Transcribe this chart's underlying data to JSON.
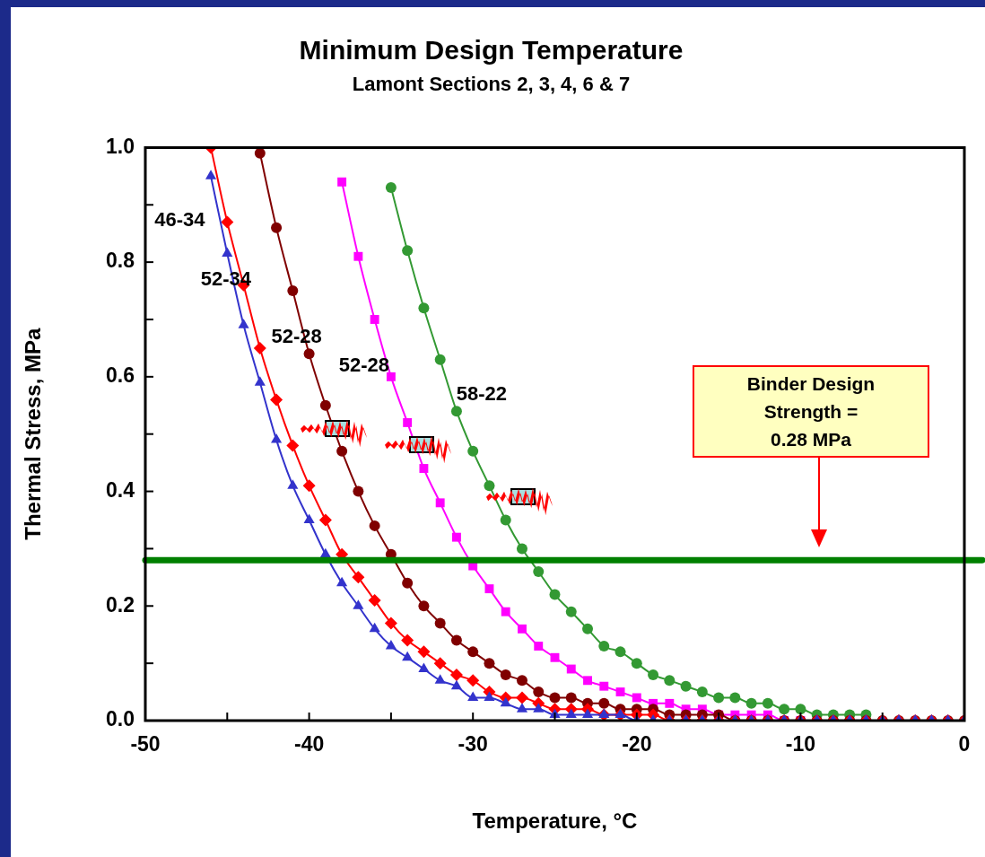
{
  "chart_data": {
    "type": "line",
    "title": "Minimum Design Temperature",
    "subtitle": "Lamont Sections 2, 3, 4, 6 & 7",
    "xlabel": "Temperature, °C",
    "ylabel": "Thermal Stress, MPa",
    "xlim": [
      -50,
      0
    ],
    "xticks": [
      -50,
      {
        "value": -45,
        "label": null
      },
      -40,
      {
        "value": -35,
        "label": null
      },
      -30,
      {
        "value": -25,
        "label": null
      },
      -20,
      {
        "value": -15,
        "label": null
      },
      -10,
      {
        "value": -5,
        "label": null
      },
      0
    ],
    "ylim": [
      0,
      1
    ],
    "yticks": [
      {
        "value": 0,
        "label": "0.0"
      },
      {
        "value": 0.1,
        "label": null
      },
      {
        "value": 0.2,
        "label": "0.2"
      },
      {
        "value": 0.3,
        "label": null
      },
      {
        "value": 0.4,
        "label": "0.4"
      },
      {
        "value": 0.5,
        "label": null
      },
      {
        "value": 0.6,
        "label": "0.6"
      },
      {
        "value": 0.7,
        "label": null
      },
      {
        "value": 0.8,
        "label": "0.8"
      },
      {
        "value": 0.9,
        "label": null
      },
      {
        "value": 1,
        "label": "1.0"
      }
    ],
    "grid": false,
    "legend": false,
    "series": [
      {
        "name": "46-34",
        "color": "#3333cc",
        "marker": "triangle",
        "x": [
          -46,
          -45,
          -44,
          -43,
          -42,
          -41,
          -40,
          -39,
          -38,
          -37,
          -36,
          -35,
          -34,
          -33,
          -32,
          -31,
          -30,
          -29,
          -28,
          -27,
          -26,
          -25,
          -24,
          -23,
          -22,
          -21,
          -20,
          -19,
          -18,
          -17,
          -16,
          -15,
          -14,
          -13,
          -12,
          -11,
          -10,
          -9,
          -8,
          -7,
          -6,
          -5,
          -4,
          -3,
          -2,
          -1,
          0
        ],
        "values": [
          0.95,
          0.815,
          0.69,
          0.59,
          0.49,
          0.41,
          0.35,
          0.29,
          0.24,
          0.2,
          0.16,
          0.13,
          0.11,
          0.09,
          0.07,
          0.06,
          0.04,
          0.04,
          0.03,
          0.02,
          0.02,
          0.01,
          0.01,
          0.01,
          0.01,
          0.01,
          0,
          0,
          0,
          0,
          0,
          0,
          0,
          0,
          0,
          0,
          0,
          0,
          0,
          0,
          0,
          0,
          0,
          0,
          0,
          0,
          0
        ]
      },
      {
        "name": "52-34",
        "color": "#ff0000",
        "marker": "diamond",
        "x": [
          -46,
          -45,
          -44,
          -43,
          -42,
          -41,
          -40,
          -39,
          -38,
          -37,
          -36,
          -35,
          -34,
          -33,
          -32,
          -31,
          -30,
          -29,
          -28,
          -27,
          -26,
          -25,
          -24,
          -23,
          -22,
          -21,
          -20,
          -19,
          -18,
          -17,
          -16,
          -15,
          -14,
          -13,
          -12,
          -11,
          -10,
          -9,
          -8,
          -7,
          -6,
          -5,
          -4,
          -3,
          -2,
          -1,
          0
        ],
        "values": [
          1.0,
          0.87,
          0.76,
          0.65,
          0.56,
          0.48,
          0.41,
          0.35,
          0.29,
          0.25,
          0.21,
          0.17,
          0.14,
          0.12,
          0.1,
          0.08,
          0.07,
          0.05,
          0.04,
          0.04,
          0.03,
          0.02,
          0.02,
          0.02,
          0.01,
          0.01,
          0.01,
          0.01,
          0,
          0,
          0,
          0,
          0,
          0,
          0,
          0,
          0,
          0,
          0,
          0,
          0,
          0,
          0,
          0,
          0,
          0,
          0
        ]
      },
      {
        "name": "52-28",
        "color": "#800000",
        "marker": "circle",
        "x": [
          -43,
          -42,
          -41,
          -40,
          -39,
          -38,
          -37,
          -36,
          -35,
          -34,
          -33,
          -32,
          -31,
          -30,
          -29,
          -28,
          -27,
          -26,
          -25,
          -24,
          -23,
          -22,
          -21,
          -20,
          -19,
          -18,
          -17,
          -16,
          -15,
          -14,
          -13,
          -12,
          -11,
          -10,
          -9,
          -8,
          -7,
          -6,
          -5,
          -4,
          -3,
          -2,
          -1,
          0
        ],
        "values": [
          0.99,
          0.86,
          0.75,
          0.64,
          0.55,
          0.47,
          0.4,
          0.34,
          0.29,
          0.24,
          0.2,
          0.17,
          0.14,
          0.12,
          0.1,
          0.08,
          0.07,
          0.05,
          0.04,
          0.04,
          0.03,
          0.03,
          0.02,
          0.02,
          0.02,
          0.01,
          0.01,
          0.01,
          0.01,
          0,
          0,
          0,
          0,
          0,
          0,
          0,
          0,
          0,
          0,
          0,
          0,
          0,
          0,
          0
        ]
      },
      {
        "name": "52-28",
        "color": "#ff00ff",
        "marker": "square",
        "x": [
          -38,
          -37,
          -36,
          -35,
          -34,
          -33,
          -32,
          -31,
          -30,
          -29,
          -28,
          -27,
          -26,
          -25,
          -24,
          -23,
          -22,
          -21,
          -20,
          -19,
          -18,
          -17,
          -16,
          -15,
          -14,
          -13,
          -12,
          -11,
          -10
        ],
        "values": [
          0.94,
          0.81,
          0.7,
          0.6,
          0.52,
          0.44,
          0.38,
          0.32,
          0.27,
          0.23,
          0.19,
          0.16,
          0.13,
          0.11,
          0.09,
          0.07,
          0.06,
          0.05,
          0.04,
          0.03,
          0.03,
          0.02,
          0.02,
          0.01,
          0.01,
          0.01,
          0.01,
          0,
          0
        ]
      },
      {
        "name": "58-22",
        "color": "#339933",
        "marker": "circle",
        "x": [
          -35,
          -34,
          -33,
          -32,
          -31,
          -30,
          -29,
          -28,
          -27,
          -26,
          -25,
          -24,
          -23,
          -22,
          -21,
          -20,
          -19,
          -18,
          -17,
          -16,
          -15,
          -14,
          -13,
          -12,
          -11,
          -10,
          -9,
          -8,
          -7,
          -6
        ],
        "values": [
          0.93,
          0.82,
          0.72,
          0.63,
          0.54,
          0.47,
          0.41,
          0.35,
          0.3,
          0.26,
          0.22,
          0.19,
          0.16,
          0.13,
          0.12,
          0.1,
          0.08,
          0.07,
          0.06,
          0.05,
          0.04,
          0.04,
          0.03,
          0.03,
          0.02,
          0.02,
          0.01,
          0.01,
          0.01,
          0.01
        ]
      }
    ],
    "ref_lines": [
      {
        "axis": "y",
        "value": 0.28,
        "color": "#008000"
      }
    ],
    "annotations": [
      "Binder Design Strength = 0.28 MPa"
    ]
  }
}
